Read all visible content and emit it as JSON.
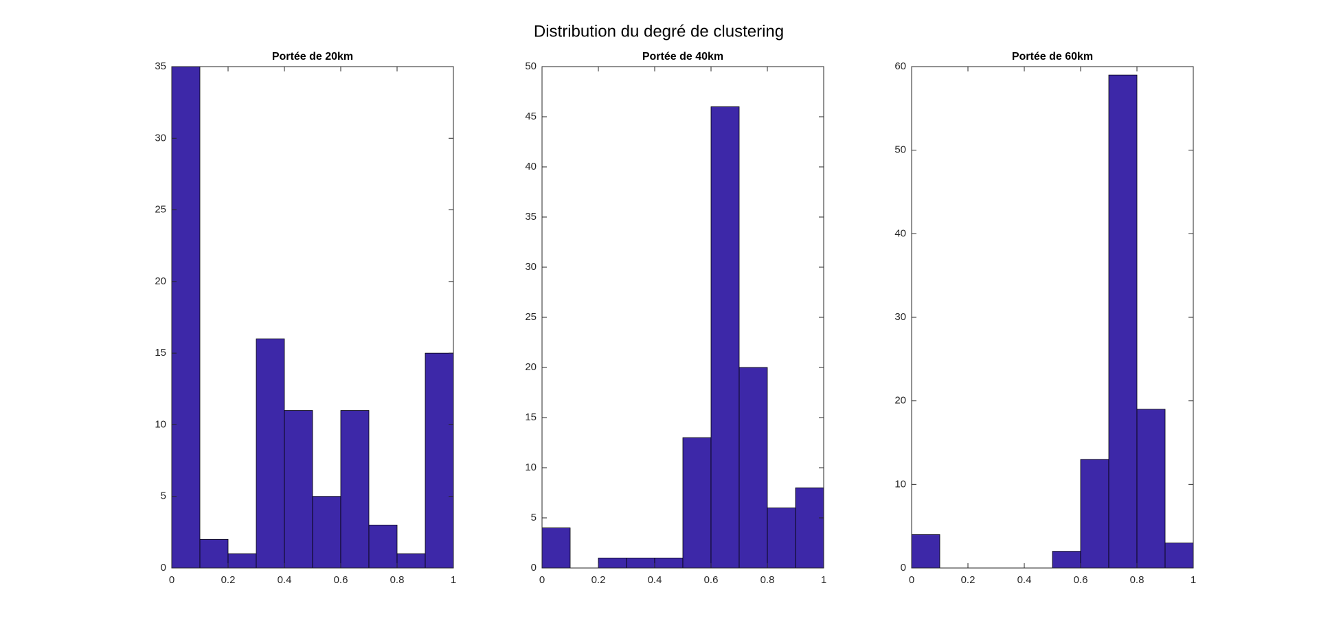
{
  "title": "Distribution du degré de clustering",
  "chart_data": [
    {
      "type": "histogram",
      "title": "Portée de 20km",
      "bins": [
        0,
        0.1,
        0.2,
        0.3,
        0.4,
        0.5,
        0.6,
        0.7,
        0.8,
        0.9,
        1
      ],
      "values": [
        35,
        2,
        1,
        16,
        11,
        5,
        11,
        3,
        1,
        15
      ],
      "color": "#3d28a8",
      "xlim": [
        0,
        1
      ],
      "xticks": [
        0,
        0.2,
        0.4,
        0.6,
        0.8,
        1
      ],
      "ylim": [
        0,
        35
      ],
      "yticks": [
        0,
        5,
        10,
        15,
        20,
        25,
        30,
        35
      ]
    },
    {
      "type": "histogram",
      "title": "Portée de 40km",
      "bins": [
        0,
        0.1,
        0.2,
        0.3,
        0.4,
        0.5,
        0.6,
        0.7,
        0.8,
        0.9,
        1
      ],
      "values": [
        4,
        0,
        1,
        1,
        1,
        13,
        46,
        20,
        6,
        8
      ],
      "color": "#3d28a8",
      "xlim": [
        0,
        1
      ],
      "xticks": [
        0,
        0.2,
        0.4,
        0.6,
        0.8,
        1
      ],
      "ylim": [
        0,
        50
      ],
      "yticks": [
        0,
        5,
        10,
        15,
        20,
        25,
        30,
        35,
        40,
        45,
        50
      ]
    },
    {
      "type": "histogram",
      "title": "Portée de 60km",
      "bins": [
        0,
        0.1,
        0.2,
        0.3,
        0.4,
        0.5,
        0.6,
        0.7,
        0.8,
        0.9,
        1
      ],
      "values": [
        4,
        0,
        0,
        0,
        0,
        2,
        13,
        59,
        19,
        3
      ],
      "color": "#3d28a8",
      "xlim": [
        0,
        1
      ],
      "xticks": [
        0,
        0.2,
        0.4,
        0.6,
        0.8,
        1
      ],
      "ylim": [
        0,
        60
      ],
      "yticks": [
        0,
        10,
        20,
        30,
        40,
        50,
        60
      ]
    }
  ]
}
